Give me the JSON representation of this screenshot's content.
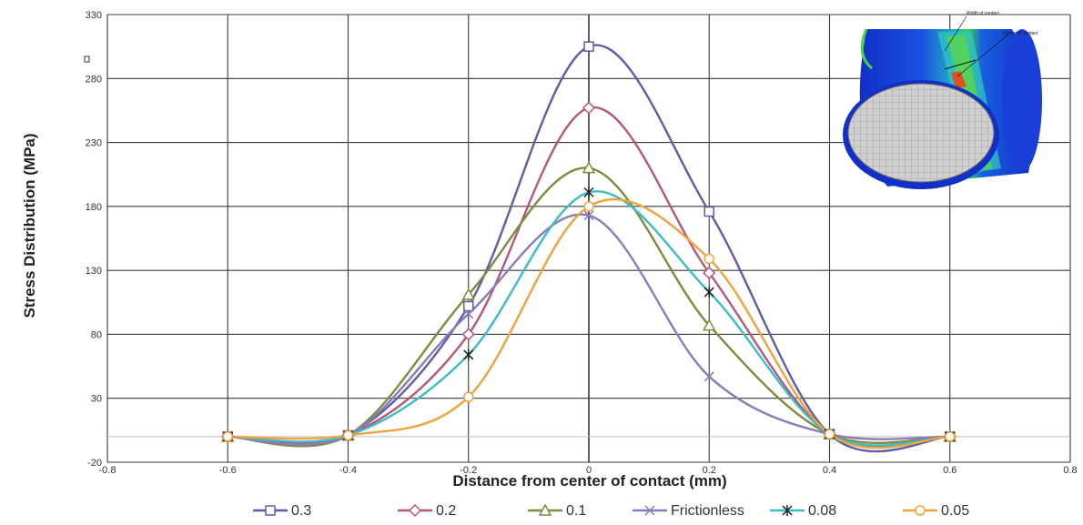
{
  "chart_data": {
    "type": "line",
    "title": "",
    "xlabel": "Distance from center of contact (mm)",
    "ylabel": "Stress Distribution (MPa)",
    "xlim": [
      -0.8,
      0.8
    ],
    "ylim": [
      -20,
      330
    ],
    "x_ticks": [
      "-0.8",
      "-0.6",
      "-0.4",
      "-0.2",
      "0",
      "0.2",
      "0.4",
      "0.6",
      "0.8"
    ],
    "y_ticks": [
      "-20",
      "30",
      "80",
      "130",
      "180",
      "230",
      "280",
      "330"
    ],
    "grid": true,
    "legend_position": "bottom",
    "series": [
      {
        "name": "0.3",
        "color": "#5b5ea6",
        "marker": "square",
        "x": [
          -0.6,
          -0.4,
          -0.2,
          0,
          0.2,
          0.4,
          0.6
        ],
        "y": [
          0,
          1,
          102,
          305,
          176,
          2,
          0
        ]
      },
      {
        "name": "0.2",
        "color": "#b5567a",
        "marker": "diamond",
        "x": [
          -0.6,
          -0.4,
          -0.2,
          0,
          0.2,
          0.4,
          0.6
        ],
        "y": [
          0,
          1,
          80,
          257,
          128,
          2,
          0
        ]
      },
      {
        "name": "0.1",
        "color": "#7d8c3c",
        "marker": "triangle",
        "x": [
          -0.6,
          -0.4,
          -0.2,
          0,
          0.2,
          0.4,
          0.6
        ],
        "y": [
          0,
          1,
          111,
          210,
          87,
          2,
          0
        ]
      },
      {
        "name": "Frictionless",
        "color": "#8a7cb8",
        "marker": "x",
        "x": [
          -0.6,
          -0.4,
          -0.2,
          0,
          0.2,
          0.4,
          0.6
        ],
        "y": [
          0,
          1,
          96,
          173,
          47,
          2,
          0
        ]
      },
      {
        "name": "0.08",
        "color": "#3cbcc4",
        "marker": "star",
        "x": [
          -0.6,
          -0.4,
          -0.2,
          0,
          0.2,
          0.4,
          0.6
        ],
        "y": [
          0,
          1,
          64,
          191,
          113,
          2,
          0
        ]
      },
      {
        "name": "0.05",
        "color": "#f2a23c",
        "marker": "circle",
        "x": [
          -0.6,
          -0.4,
          -0.2,
          0,
          0.2,
          0.4,
          0.6
        ],
        "y": [
          0,
          1,
          31,
          180,
          139,
          2,
          0
        ]
      }
    ]
  },
  "inset": {
    "label_width": "Width of contact",
    "label_center": "Center of contact"
  }
}
